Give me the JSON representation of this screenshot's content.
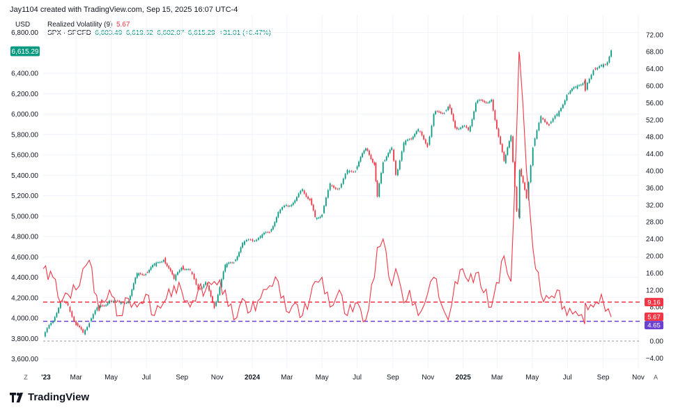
{
  "header": {
    "text": "Jay1104 created with TradingView.com, Sep 15, 2025 16:07 UTC-4"
  },
  "currency": "USD",
  "legend": {
    "rv_name": "Realized Volatility (9)",
    "rv_value": "5.67",
    "spx_name": "SPX · SPCFD",
    "spx_ohlc": "6,603.49  6,619.62  6,602.07  6,615.29",
    "spx_change": "+31.01 (+0.47%)"
  },
  "price_badge": "6,615.29",
  "right_badges": {
    "hline_top": "9.16",
    "current_rv": "5.67",
    "hline_bottom": "4.65"
  },
  "corner_buttons": {
    "left": "Z",
    "right": "A"
  },
  "branding": "TradingView",
  "colors": {
    "up": "#089981",
    "down": "#f23645",
    "rv_line": "#f23645",
    "hline_red": "#f23645",
    "hline_purple": "#6b3fd4",
    "zero_line": "#9598a1"
  },
  "chart_data": {
    "type": "line",
    "x_tick_labels": [
      "'23",
      "Mar",
      "May",
      "Jul",
      "Sep",
      "Nov",
      "2024",
      "Mar",
      "May",
      "Jul",
      "Sep",
      "Nov",
      "2025",
      "Mar",
      "May",
      "Jul",
      "Sep",
      "Nov"
    ],
    "left_axis": {
      "label": "USD",
      "ticks": [
        "3,600.00",
        "3,800.00",
        "4,000.00",
        "4,200.00",
        "4,400.00",
        "4,600.00",
        "4,800.00",
        "5,000.00",
        "5,200.00",
        "5,400.00",
        "5,600.00",
        "5,800.00",
        "6,000.00",
        "6,200.00",
        "6,400.00",
        "6,800.00"
      ],
      "ylim": [
        3600,
        6800
      ]
    },
    "right_axis": {
      "ticks": [
        "−4.00",
        "0.00",
        "4.00",
        "8.00",
        "12.00",
        "16.00",
        "20.00",
        "24.00",
        "28.00",
        "32.00",
        "36.00",
        "40.00",
        "44.00",
        "48.00",
        "52.00",
        "56.00",
        "60.00",
        "64.00",
        "68.00",
        "72.00"
      ],
      "ylim": [
        -4,
        72
      ]
    },
    "horizontal_lines": [
      {
        "value": 9.16,
        "style": "dashed",
        "color": "red"
      },
      {
        "value": 4.65,
        "style": "dashed",
        "color": "purple"
      },
      {
        "value": 0,
        "style": "dashed",
        "color": "gray"
      }
    ],
    "series": [
      {
        "name": "SPX · SPCFD",
        "style": "candles",
        "axis": "left",
        "points": [
          [
            "2023-01-03",
            3820
          ],
          [
            "2023-01-20",
            3970
          ],
          [
            "2023-02-02",
            4170
          ],
          [
            "2023-02-15",
            4110
          ],
          [
            "2023-03-01",
            3950
          ],
          [
            "2023-03-13",
            3840
          ],
          [
            "2023-03-24",
            3970
          ],
          [
            "2023-04-10",
            4110
          ],
          [
            "2023-04-28",
            4170
          ],
          [
            "2023-05-15",
            4140
          ],
          [
            "2023-05-31",
            4180
          ],
          [
            "2023-06-15",
            4420
          ],
          [
            "2023-06-30",
            4450
          ],
          [
            "2023-07-15",
            4510
          ],
          [
            "2023-07-31",
            4590
          ],
          [
            "2023-08-18",
            4370
          ],
          [
            "2023-08-31",
            4510
          ],
          [
            "2023-09-15",
            4450
          ],
          [
            "2023-09-29",
            4290
          ],
          [
            "2023-10-12",
            4340
          ],
          [
            "2023-10-27",
            4120
          ],
          [
            "2023-11-15",
            4500
          ],
          [
            "2023-11-30",
            4560
          ],
          [
            "2023-12-15",
            4720
          ],
          [
            "2023-12-29",
            4770
          ],
          [
            "2024-01-15",
            4790
          ],
          [
            "2024-01-31",
            4850
          ],
          [
            "2024-02-15",
            5030
          ],
          [
            "2024-02-29",
            5100
          ],
          [
            "2024-03-15",
            5150
          ],
          [
            "2024-03-28",
            5250
          ],
          [
            "2024-04-10",
            5170
          ],
          [
            "2024-04-19",
            4970
          ],
          [
            "2024-05-01",
            5030
          ],
          [
            "2024-05-15",
            5300
          ],
          [
            "2024-05-31",
            5280
          ],
          [
            "2024-06-14",
            5430
          ],
          [
            "2024-06-28",
            5460
          ],
          [
            "2024-07-16",
            5660
          ],
          [
            "2024-07-31",
            5520
          ],
          [
            "2024-08-05",
            5190
          ],
          [
            "2024-08-15",
            5540
          ],
          [
            "2024-08-30",
            5650
          ],
          [
            "2024-09-06",
            5400
          ],
          [
            "2024-09-20",
            5700
          ],
          [
            "2024-09-30",
            5760
          ],
          [
            "2024-10-15",
            5830
          ],
          [
            "2024-10-31",
            5700
          ],
          [
            "2024-11-11",
            6000
          ],
          [
            "2024-11-29",
            6030
          ],
          [
            "2024-12-06",
            6090
          ],
          [
            "2024-12-18",
            5870
          ],
          [
            "2024-12-31",
            5880
          ],
          [
            "2025-01-10",
            5830
          ],
          [
            "2025-01-23",
            6110
          ],
          [
            "2025-02-19",
            6140
          ],
          [
            "2025-03-13",
            5520
          ],
          [
            "2025-03-25",
            5780
          ],
          [
            "2025-04-04",
            5070
          ],
          [
            "2025-04-08",
            4980
          ],
          [
            "2025-04-09",
            5460
          ],
          [
            "2025-04-21",
            5160
          ],
          [
            "2025-05-02",
            5690
          ],
          [
            "2025-05-16",
            5960
          ],
          [
            "2025-05-30",
            5910
          ],
          [
            "2025-06-13",
            5980
          ],
          [
            "2025-06-30",
            6200
          ],
          [
            "2025-07-15",
            6250
          ],
          [
            "2025-07-31",
            6340
          ],
          [
            "2025-08-01",
            6240
          ],
          [
            "2025-08-15",
            6450
          ],
          [
            "2025-08-29",
            6460
          ],
          [
            "2025-09-05",
            6480
          ],
          [
            "2025-09-15",
            6615.29
          ]
        ]
      },
      {
        "name": "Realized Volatility (9)",
        "style": "line",
        "axis": "right",
        "points": [
          [
            "2023-01-03",
            17
          ],
          [
            "2023-01-20",
            15
          ],
          [
            "2023-02-02",
            9
          ],
          [
            "2023-02-15",
            11
          ],
          [
            "2023-03-01",
            12
          ],
          [
            "2023-03-13",
            17
          ],
          [
            "2023-03-24",
            19
          ],
          [
            "2023-04-10",
            7
          ],
          [
            "2023-04-28",
            12
          ],
          [
            "2023-05-15",
            6
          ],
          [
            "2023-05-31",
            10
          ],
          [
            "2023-06-15",
            8
          ],
          [
            "2023-06-30",
            11
          ],
          [
            "2023-07-15",
            6
          ],
          [
            "2023-07-31",
            9
          ],
          [
            "2023-08-18",
            13
          ],
          [
            "2023-08-31",
            12
          ],
          [
            "2023-09-15",
            8
          ],
          [
            "2023-09-29",
            12
          ],
          [
            "2023-10-12",
            12
          ],
          [
            "2023-10-27",
            14
          ],
          [
            "2023-11-15",
            12
          ],
          [
            "2023-11-30",
            5
          ],
          [
            "2023-12-15",
            10
          ],
          [
            "2023-12-29",
            7
          ],
          [
            "2024-01-15",
            10
          ],
          [
            "2024-01-31",
            13
          ],
          [
            "2024-02-15",
            14
          ],
          [
            "2024-02-29",
            7
          ],
          [
            "2024-03-15",
            9
          ],
          [
            "2024-03-28",
            6
          ],
          [
            "2024-04-10",
            10
          ],
          [
            "2024-04-19",
            14
          ],
          [
            "2024-05-01",
            15
          ],
          [
            "2024-05-15",
            8
          ],
          [
            "2024-05-31",
            12
          ],
          [
            "2024-06-14",
            6
          ],
          [
            "2024-06-28",
            9
          ],
          [
            "2024-07-16",
            5
          ],
          [
            "2024-07-31",
            15
          ],
          [
            "2024-08-05",
            22
          ],
          [
            "2024-08-15",
            24
          ],
          [
            "2024-08-30",
            13
          ],
          [
            "2024-09-06",
            17
          ],
          [
            "2024-09-20",
            9
          ],
          [
            "2024-09-30",
            12
          ],
          [
            "2024-10-15",
            6
          ],
          [
            "2024-10-31",
            11
          ],
          [
            "2024-11-11",
            15
          ],
          [
            "2024-11-29",
            7
          ],
          [
            "2024-12-06",
            5
          ],
          [
            "2024-12-18",
            14
          ],
          [
            "2024-12-31",
            17
          ],
          [
            "2025-01-10",
            14
          ],
          [
            "2025-01-23",
            16
          ],
          [
            "2025-02-19",
            8
          ],
          [
            "2025-03-13",
            20
          ],
          [
            "2025-03-25",
            14
          ],
          [
            "2025-04-04",
            50
          ],
          [
            "2025-04-08",
            68
          ],
          [
            "2025-04-09",
            67
          ],
          [
            "2025-04-21",
            40
          ],
          [
            "2025-05-02",
            22
          ],
          [
            "2025-05-16",
            11
          ],
          [
            "2025-05-30",
            10
          ],
          [
            "2025-06-13",
            12
          ],
          [
            "2025-06-30",
            6
          ],
          [
            "2025-07-15",
            7
          ],
          [
            "2025-07-31",
            4
          ],
          [
            "2025-08-01",
            9
          ],
          [
            "2025-08-15",
            8
          ],
          [
            "2025-08-29",
            11
          ],
          [
            "2025-09-05",
            7
          ],
          [
            "2025-09-15",
            5.67
          ]
        ]
      }
    ]
  }
}
